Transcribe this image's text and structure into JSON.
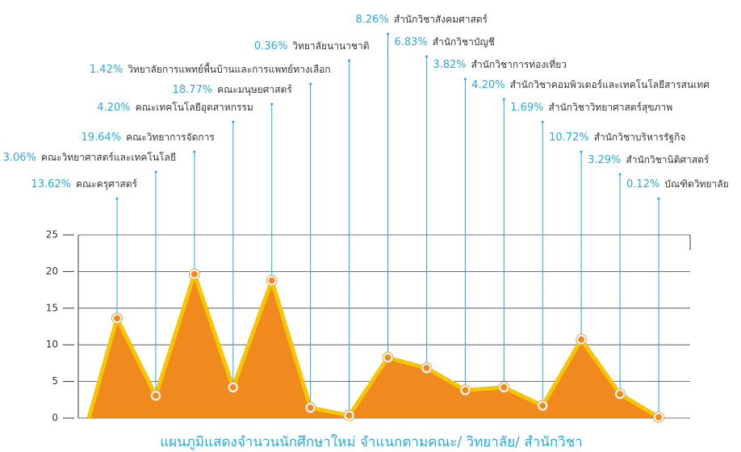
{
  "chart_data": {
    "type": "area",
    "title": "แผนภูมิแสดงจำนวนนักศึกษาใหม่ จำแนกตามคณะ/ วิทยาลัย/ สำนักวิชา",
    "categories": [
      "คณะครุศาสตร์",
      "คณะวิทยาศาสตร์และเทคโนโลยี",
      "คณะวิทยาการจัดการ",
      "คณะเทคโนโลยีอุตสาหกรรม",
      "คณะมนุษยศาสตร์",
      "วิทยาลัยการแพทย์พื้นบ้านและการแพทย์ทางเลือก",
      "วิทยาลัยนานาชาติ",
      "สำนักวิชาสังคมศาสตร์",
      "สำนักวิชาบัญชี",
      "สำนักวิชาการท่องเที่ยว",
      "สำนักวิชาคอมพิวเตอร์และเทคโนโลยีสารสนเทศ",
      "สำนักวิชาวิทยาศาสตร์สุขภาพ",
      "สำนักวิชาบริหารรัฐกิจ",
      "สำนักวิชานิติศาสตร์",
      "บัณฑิตวิทยาลัย"
    ],
    "values": [
      13.62,
      3.06,
      19.64,
      4.2,
      18.77,
      1.42,
      0.36,
      8.26,
      6.83,
      3.82,
      4.2,
      1.69,
      10.72,
      3.29,
      0.12
    ],
    "value_labels": [
      "13.62%",
      "3.06%",
      "19.64%",
      "4.20%",
      "18.77%",
      "1.42%",
      "0.36%",
      "8.26%",
      "6.83%",
      "3.82%",
      "4.20%",
      "1.69%",
      "10.72%",
      "3.29%",
      "0.12%"
    ],
    "color": "#f08a1e",
    "line_color": "#f7c600",
    "ylim": [
      0,
      25
    ],
    "yticks": [
      0,
      5,
      10,
      15,
      20,
      25
    ],
    "grid": true
  }
}
